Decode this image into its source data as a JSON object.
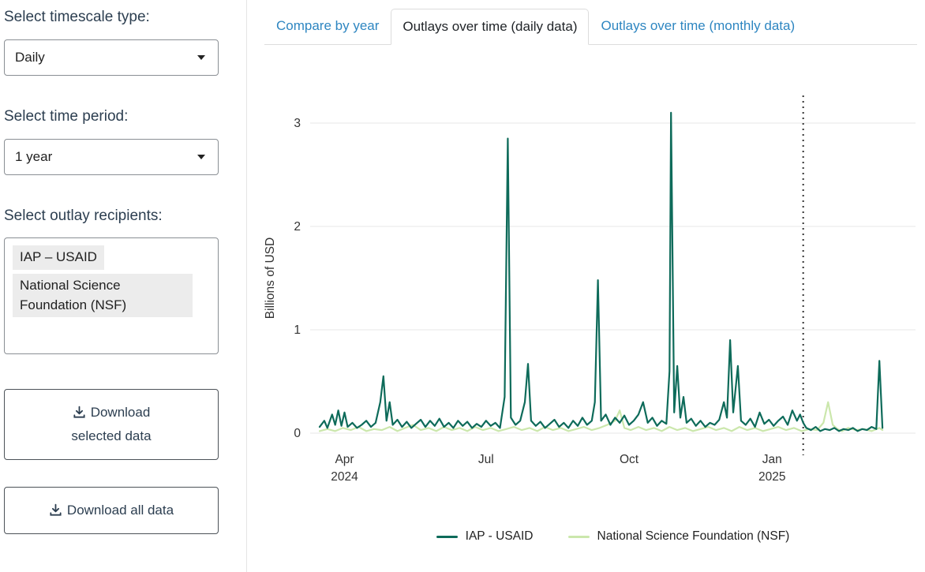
{
  "sidebar": {
    "timescale_label": "Select timescale type:",
    "timescale_value": "Daily",
    "period_label": "Select time period:",
    "period_value": "1 year",
    "recipients_label": "Select outlay recipients:",
    "recipients": [
      "IAP – USAID",
      "National Science Foundation (NSF)"
    ],
    "download_selected_label": "Download selected data",
    "download_all_label": "Download all data"
  },
  "tabs": [
    {
      "label": "Compare by year",
      "active": false
    },
    {
      "label": "Outlays over time (daily data)",
      "active": true
    },
    {
      "label": "Outlays over time (monthly data)",
      "active": false
    }
  ],
  "colors": {
    "text_dark": "#2c3e50",
    "tab_link": "#2e86c1",
    "usaid_line": "#0e6b5a",
    "nsf_line": "#cbe7ac",
    "reference_line": "#333333"
  },
  "chart_data": {
    "type": "line",
    "title": "",
    "xlabel": "",
    "ylabel": "Billions of USD",
    "ylim": [
      0,
      3.2
    ],
    "yticks": [
      0,
      1,
      2,
      3
    ],
    "grid": true,
    "legend_position": "bottom",
    "xticks": [
      {
        "day": 16,
        "label": "Apr",
        "year": "2024"
      },
      {
        "day": 107,
        "label": "Jul"
      },
      {
        "day": 199,
        "label": "Oct"
      },
      {
        "day": 291,
        "label": "Jan",
        "year": "2025"
      }
    ],
    "x_domain_days": [
      0,
      363
    ],
    "reference_line": {
      "day": 311,
      "style": "dotted"
    },
    "series": [
      {
        "name": "IAP - USAID",
        "color": "#0e6b5a",
        "points": [
          [
            0,
            0.06
          ],
          [
            3,
            0.12
          ],
          [
            5,
            0.05
          ],
          [
            8,
            0.18
          ],
          [
            10,
            0.08
          ],
          [
            12,
            0.22
          ],
          [
            14,
            0.07
          ],
          [
            16,
            0.2
          ],
          [
            18,
            0.06
          ],
          [
            21,
            0.1
          ],
          [
            24,
            0.05
          ],
          [
            27,
            0.08
          ],
          [
            30,
            0.12
          ],
          [
            33,
            0.06
          ],
          [
            36,
            0.1
          ],
          [
            39,
            0.3
          ],
          [
            41,
            0.55
          ],
          [
            43,
            0.12
          ],
          [
            45,
            0.3
          ],
          [
            47,
            0.08
          ],
          [
            50,
            0.13
          ],
          [
            53,
            0.06
          ],
          [
            56,
            0.11
          ],
          [
            59,
            0.05
          ],
          [
            62,
            0.09
          ],
          [
            65,
            0.13
          ],
          [
            68,
            0.06
          ],
          [
            71,
            0.12
          ],
          [
            74,
            0.07
          ],
          [
            77,
            0.14
          ],
          [
            80,
            0.06
          ],
          [
            83,
            0.1
          ],
          [
            86,
            0.05
          ],
          [
            89,
            0.12
          ],
          [
            92,
            0.07
          ],
          [
            95,
            0.11
          ],
          [
            98,
            0.05
          ],
          [
            101,
            0.09
          ],
          [
            104,
            0.06
          ],
          [
            107,
            0.12
          ],
          [
            110,
            0.07
          ],
          [
            113,
            0.1
          ],
          [
            116,
            0.05
          ],
          [
            119,
            0.35
          ],
          [
            121,
            2.85
          ],
          [
            123,
            0.15
          ],
          [
            126,
            0.08
          ],
          [
            129,
            0.12
          ],
          [
            132,
            0.3
          ],
          [
            134,
            0.67
          ],
          [
            136,
            0.12
          ],
          [
            139,
            0.07
          ],
          [
            142,
            0.11
          ],
          [
            145,
            0.05
          ],
          [
            148,
            0.09
          ],
          [
            151,
            0.13
          ],
          [
            154,
            0.06
          ],
          [
            157,
            0.1
          ],
          [
            160,
            0.05
          ],
          [
            163,
            0.12
          ],
          [
            166,
            0.07
          ],
          [
            169,
            0.15
          ],
          [
            172,
            0.08
          ],
          [
            175,
            0.12
          ],
          [
            177,
            0.3
          ],
          [
            179,
            1.48
          ],
          [
            181,
            0.12
          ],
          [
            184,
            0.18
          ],
          [
            187,
            0.08
          ],
          [
            190,
            0.15
          ],
          [
            193,
            0.1
          ],
          [
            196,
            0.17
          ],
          [
            199,
            0.08
          ],
          [
            202,
            0.12
          ],
          [
            205,
            0.18
          ],
          [
            208,
            0.3
          ],
          [
            211,
            0.1
          ],
          [
            214,
            0.15
          ],
          [
            217,
            0.07
          ],
          [
            220,
            0.12
          ],
          [
            223,
            0.09
          ],
          [
            225,
            0.6
          ],
          [
            226,
            3.1
          ],
          [
            228,
            0.2
          ],
          [
            230,
            0.65
          ],
          [
            232,
            0.15
          ],
          [
            234,
            0.35
          ],
          [
            236,
            0.1
          ],
          [
            239,
            0.14
          ],
          [
            242,
            0.07
          ],
          [
            245,
            0.12
          ],
          [
            248,
            0.06
          ],
          [
            251,
            0.1
          ],
          [
            254,
            0.08
          ],
          [
            257,
            0.13
          ],
          [
            260,
            0.3
          ],
          [
            262,
            0.15
          ],
          [
            264,
            0.9
          ],
          [
            266,
            0.2
          ],
          [
            269,
            0.65
          ],
          [
            271,
            0.12
          ],
          [
            274,
            0.08
          ],
          [
            277,
            0.14
          ],
          [
            280,
            0.06
          ],
          [
            283,
            0.2
          ],
          [
            286,
            0.09
          ],
          [
            289,
            0.13
          ],
          [
            292,
            0.07
          ],
          [
            295,
            0.12
          ],
          [
            298,
            0.16
          ],
          [
            301,
            0.08
          ],
          [
            304,
            0.22
          ],
          [
            307,
            0.12
          ],
          [
            309,
            0.18
          ],
          [
            311,
            0.1
          ],
          [
            313,
            0.05
          ],
          [
            316,
            0.03
          ],
          [
            319,
            0.06
          ],
          [
            322,
            0.02
          ],
          [
            325,
            0.04
          ],
          [
            328,
            0.03
          ],
          [
            331,
            0.05
          ],
          [
            334,
            0.02
          ],
          [
            337,
            0.04
          ],
          [
            340,
            0.03
          ],
          [
            343,
            0.05
          ],
          [
            346,
            0.02
          ],
          [
            349,
            0.04
          ],
          [
            352,
            0.03
          ],
          [
            355,
            0.06
          ],
          [
            358,
            0.04
          ],
          [
            360,
            0.7
          ],
          [
            362,
            0.05
          ]
        ]
      },
      {
        "name": "National Science Foundation (NSF)",
        "color": "#cbe7ac",
        "points": [
          [
            0,
            0.02
          ],
          [
            5,
            0.04
          ],
          [
            10,
            0.02
          ],
          [
            15,
            0.05
          ],
          [
            20,
            0.03
          ],
          [
            25,
            0.06
          ],
          [
            30,
            0.02
          ],
          [
            35,
            0.04
          ],
          [
            40,
            0.03
          ],
          [
            45,
            0.06
          ],
          [
            50,
            0.02
          ],
          [
            55,
            0.05
          ],
          [
            60,
            0.08
          ],
          [
            65,
            0.03
          ],
          [
            70,
            0.05
          ],
          [
            75,
            0.02
          ],
          [
            80,
            0.06
          ],
          [
            85,
            0.03
          ],
          [
            90,
            0.05
          ],
          [
            95,
            0.02
          ],
          [
            100,
            0.06
          ],
          [
            105,
            0.03
          ],
          [
            110,
            0.05
          ],
          [
            115,
            0.02
          ],
          [
            120,
            0.04
          ],
          [
            125,
            0.06
          ],
          [
            130,
            0.03
          ],
          [
            135,
            0.05
          ],
          [
            140,
            0.02
          ],
          [
            145,
            0.06
          ],
          [
            150,
            0.03
          ],
          [
            155,
            0.05
          ],
          [
            160,
            0.02
          ],
          [
            165,
            0.04
          ],
          [
            170,
            0.06
          ],
          [
            175,
            0.03
          ],
          [
            180,
            0.05
          ],
          [
            185,
            0.08
          ],
          [
            190,
            0.12
          ],
          [
            193,
            0.22
          ],
          [
            196,
            0.05
          ],
          [
            200,
            0.03
          ],
          [
            205,
            0.06
          ],
          [
            210,
            0.03
          ],
          [
            215,
            0.05
          ],
          [
            220,
            0.02
          ],
          [
            225,
            0.06
          ],
          [
            230,
            0.03
          ],
          [
            235,
            0.05
          ],
          [
            240,
            0.02
          ],
          [
            245,
            0.04
          ],
          [
            250,
            0.06
          ],
          [
            255,
            0.03
          ],
          [
            260,
            0.05
          ],
          [
            265,
            0.02
          ],
          [
            270,
            0.06
          ],
          [
            275,
            0.03
          ],
          [
            280,
            0.05
          ],
          [
            285,
            0.02
          ],
          [
            290,
            0.04
          ],
          [
            295,
            0.06
          ],
          [
            300,
            0.03
          ],
          [
            305,
            0.05
          ],
          [
            310,
            0.02
          ],
          [
            315,
            0.04
          ],
          [
            320,
            0.03
          ],
          [
            324,
            0.1
          ],
          [
            327,
            0.3
          ],
          [
            330,
            0.08
          ],
          [
            333,
            0.04
          ],
          [
            336,
            0.02
          ],
          [
            340,
            0.05
          ],
          [
            345,
            0.03
          ],
          [
            350,
            0.04
          ],
          [
            355,
            0.02
          ],
          [
            360,
            0.05
          ],
          [
            362,
            0.03
          ]
        ]
      }
    ]
  }
}
